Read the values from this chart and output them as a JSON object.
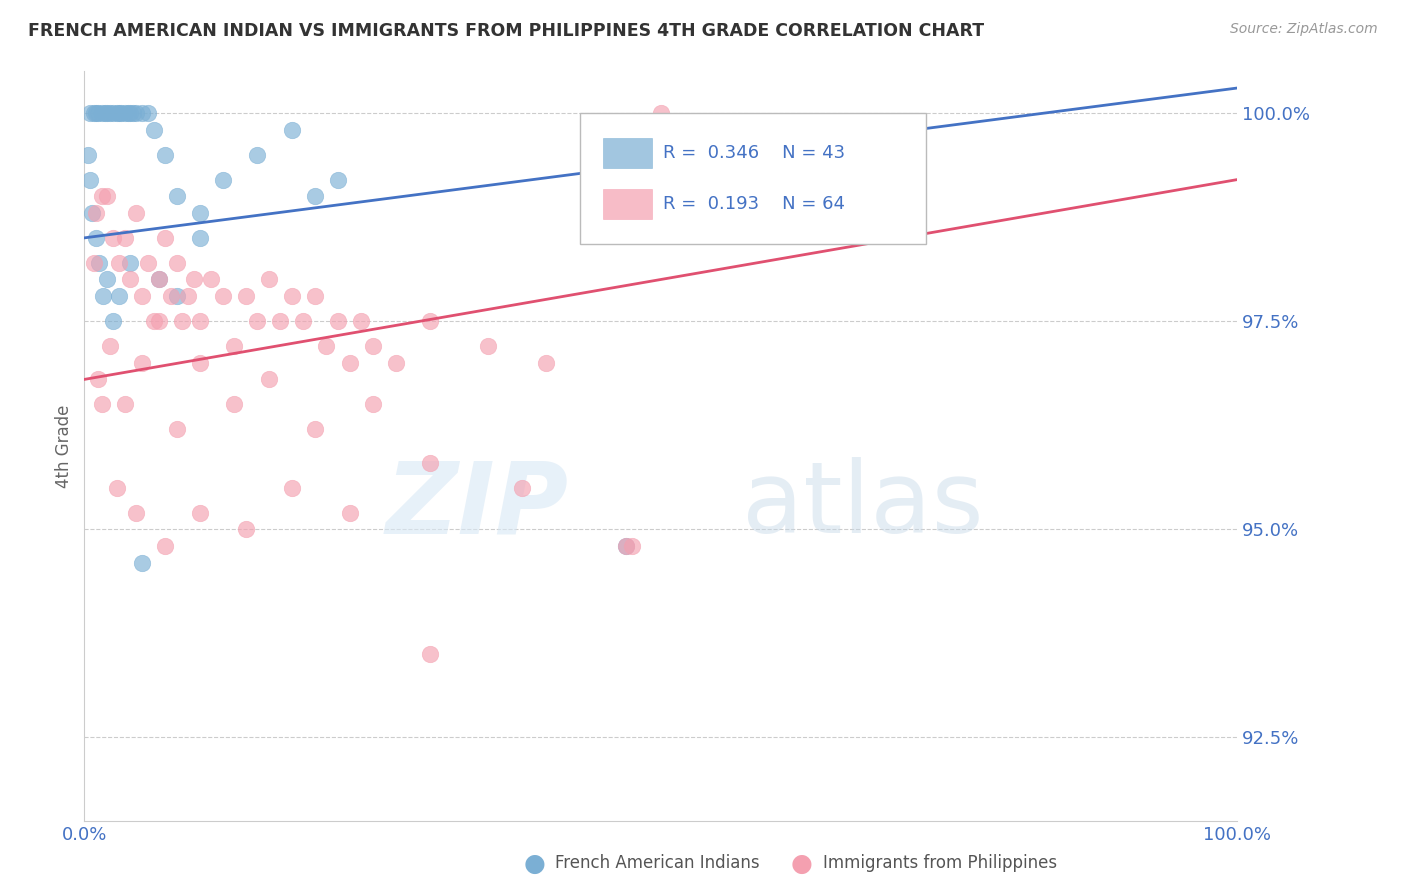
{
  "title": "FRENCH AMERICAN INDIAN VS IMMIGRANTS FROM PHILIPPINES 4TH GRADE CORRELATION CHART",
  "source": "Source: ZipAtlas.com",
  "ylabel": "4th Grade",
  "xlim": [
    0.0,
    100.0
  ],
  "ylim": [
    91.5,
    100.5
  ],
  "yticks": [
    92.5,
    95.0,
    97.5,
    100.0
  ],
  "xticks": [
    0.0,
    20.0,
    40.0,
    60.0,
    80.0,
    100.0
  ],
  "color_blue": "#7BAFD4",
  "color_pink": "#F4A0B0",
  "color_line_blue": "#4472C4",
  "color_line_pink": "#E05070",
  "color_axis_labels": "#4472C4",
  "color_grid": "#CCCCCC",
  "color_title": "#333333",
  "legend_label1": "French American Indians",
  "legend_label2": "Immigrants from Philippines",
  "blue_line_x0": 0.0,
  "blue_line_y0": 98.5,
  "blue_line_x1": 100.0,
  "blue_line_y1": 100.3,
  "pink_line_x0": 0.0,
  "pink_line_y0": 96.8,
  "pink_line_x1": 100.0,
  "pink_line_y1": 99.2,
  "blue_x": [
    0.5,
    0.8,
    1.0,
    1.2,
    1.5,
    1.8,
    2.0,
    2.2,
    2.5,
    2.8,
    3.0,
    3.2,
    3.5,
    3.8,
    4.0,
    4.2,
    4.5,
    5.0,
    5.5,
    6.0,
    7.0,
    8.0,
    10.0,
    12.0,
    15.0,
    18.0,
    20.0,
    22.0,
    0.3,
    0.5,
    0.7,
    1.0,
    1.3,
    1.6,
    2.0,
    2.5,
    3.0,
    4.0,
    5.0,
    6.5,
    8.0,
    10.0,
    47.0
  ],
  "blue_y": [
    100.0,
    100.0,
    100.0,
    100.0,
    100.0,
    100.0,
    100.0,
    100.0,
    100.0,
    100.0,
    100.0,
    100.0,
    100.0,
    100.0,
    100.0,
    100.0,
    100.0,
    100.0,
    100.0,
    99.8,
    99.5,
    99.0,
    98.8,
    99.2,
    99.5,
    99.8,
    99.0,
    99.2,
    99.5,
    99.2,
    98.8,
    98.5,
    98.2,
    97.8,
    98.0,
    97.5,
    97.8,
    98.2,
    94.6,
    98.0,
    97.8,
    98.5,
    94.8
  ],
  "pink_x": [
    0.8,
    1.0,
    1.5,
    2.0,
    2.5,
    3.0,
    3.5,
    4.0,
    4.5,
    5.0,
    5.5,
    6.0,
    6.5,
    7.0,
    7.5,
    8.0,
    8.5,
    9.0,
    9.5,
    10.0,
    11.0,
    12.0,
    13.0,
    14.0,
    15.0,
    16.0,
    17.0,
    18.0,
    19.0,
    20.0,
    21.0,
    22.0,
    23.0,
    24.0,
    25.0,
    27.0,
    30.0,
    35.0,
    40.0,
    1.2,
    2.2,
    3.5,
    5.0,
    6.5,
    8.0,
    10.0,
    13.0,
    16.0,
    20.0,
    25.0,
    30.0,
    38.0,
    47.0,
    50.0,
    1.5,
    2.8,
    4.5,
    7.0,
    10.0,
    14.0,
    18.0,
    23.0,
    30.0,
    47.5
  ],
  "pink_y": [
    98.2,
    98.8,
    99.0,
    99.0,
    98.5,
    98.2,
    98.5,
    98.0,
    98.8,
    97.8,
    98.2,
    97.5,
    98.0,
    98.5,
    97.8,
    98.2,
    97.5,
    97.8,
    98.0,
    97.5,
    98.0,
    97.8,
    97.2,
    97.8,
    97.5,
    98.0,
    97.5,
    97.8,
    97.5,
    97.8,
    97.2,
    97.5,
    97.0,
    97.5,
    97.2,
    97.0,
    97.5,
    97.2,
    97.0,
    96.8,
    97.2,
    96.5,
    97.0,
    97.5,
    96.2,
    97.0,
    96.5,
    96.8,
    96.2,
    96.5,
    95.8,
    95.5,
    94.8,
    100.0,
    96.5,
    95.5,
    95.2,
    94.8,
    95.2,
    95.0,
    95.5,
    95.2,
    93.5,
    94.8
  ]
}
